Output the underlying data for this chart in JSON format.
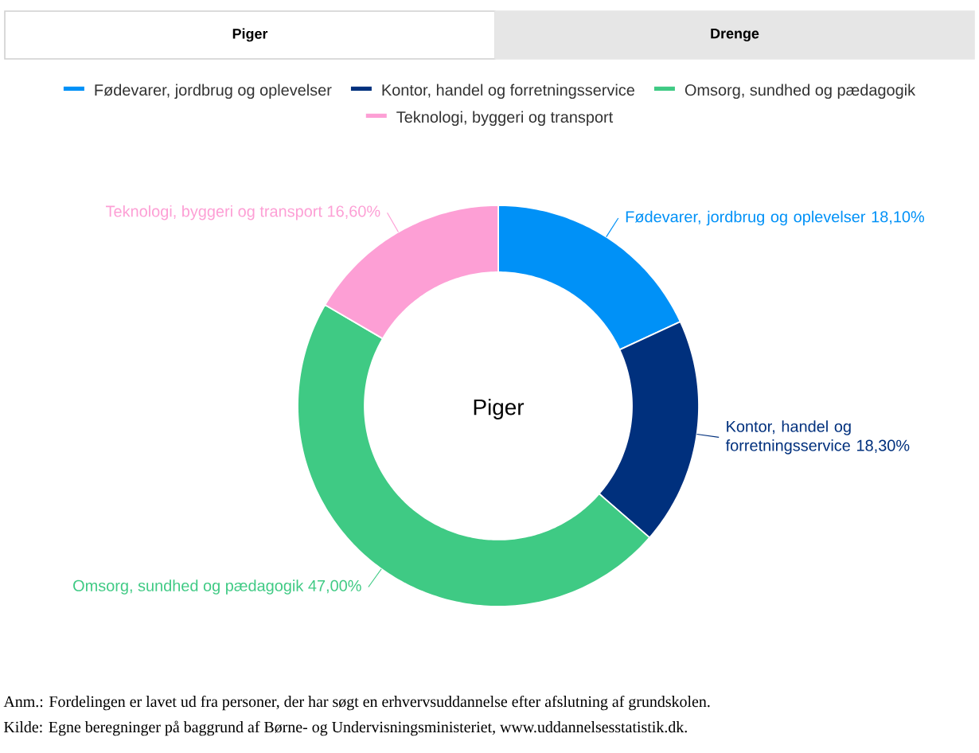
{
  "chart_data": {
    "type": "donut",
    "title": "Piger",
    "categories": [
      "Fødevarer, jordbrug og oplevelser",
      "Kontor, handel og forretningsservice",
      "Omsorg, sundhed og pædagogik",
      "Teknologi, byggeri og transport"
    ],
    "values": [
      18.1,
      18.3,
      47.0,
      16.6
    ],
    "colors": [
      "#0091f7",
      "#00307d",
      "#3fca84",
      "#fd9fd5"
    ],
    "value_labels": [
      "18,10%",
      "18,30%",
      "47,00%",
      "16,60%"
    ],
    "legend": "top",
    "annotations": [
      "Piger",
      "Drenge",
      "Anm.: Fordelingen er lavet ud fra personer, der har søgt en erhvervsuddannelse efter afslutning af grundskolen.",
      "Kilde: Egne beregninger på baggrund af Børne- og Undervisningsministeriet, www.uddannelsesstatistik.dk."
    ]
  }
}
